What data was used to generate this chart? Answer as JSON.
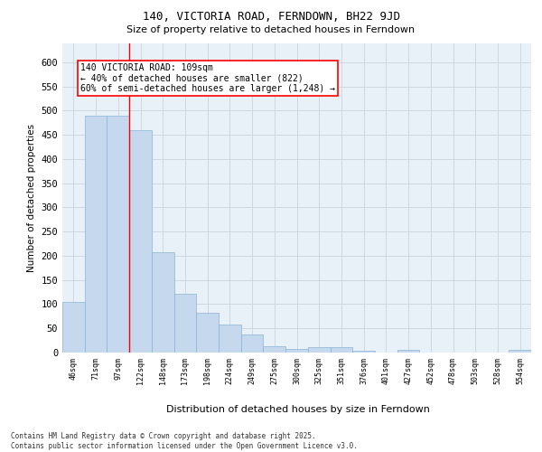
{
  "title": "140, VICTORIA ROAD, FERNDOWN, BH22 9JD",
  "subtitle": "Size of property relative to detached houses in Ferndown",
  "xlabel": "Distribution of detached houses by size in Ferndown",
  "ylabel": "Number of detached properties",
  "categories": [
    "46sqm",
    "71sqm",
    "97sqm",
    "122sqm",
    "148sqm",
    "173sqm",
    "198sqm",
    "224sqm",
    "249sqm",
    "275sqm",
    "300sqm",
    "325sqm",
    "351sqm",
    "376sqm",
    "401sqm",
    "427sqm",
    "452sqm",
    "478sqm",
    "503sqm",
    "528sqm",
    "554sqm"
  ],
  "values": [
    105,
    490,
    490,
    460,
    207,
    121,
    82,
    57,
    38,
    13,
    8,
    11,
    11,
    4,
    0,
    5,
    0,
    0,
    0,
    0,
    6
  ],
  "bar_color": "#c5d8ed",
  "bar_edge_color": "#8ab4d4",
  "grid_color": "#c8d4e0",
  "bg_color": "#e8f0f8",
  "annotation_text": "140 VICTORIA ROAD: 109sqm\n← 40% of detached houses are smaller (822)\n60% of semi-detached houses are larger (1,248) →",
  "annotation_box_color": "white",
  "annotation_box_edge": "red",
  "vline_x": 2.5,
  "vline_color": "red",
  "footnote": "Contains HM Land Registry data © Crown copyright and database right 2025.\nContains public sector information licensed under the Open Government Licence v3.0.",
  "ylim": [
    0,
    640
  ],
  "yticks": [
    0,
    50,
    100,
    150,
    200,
    250,
    300,
    350,
    400,
    450,
    500,
    550,
    600
  ]
}
